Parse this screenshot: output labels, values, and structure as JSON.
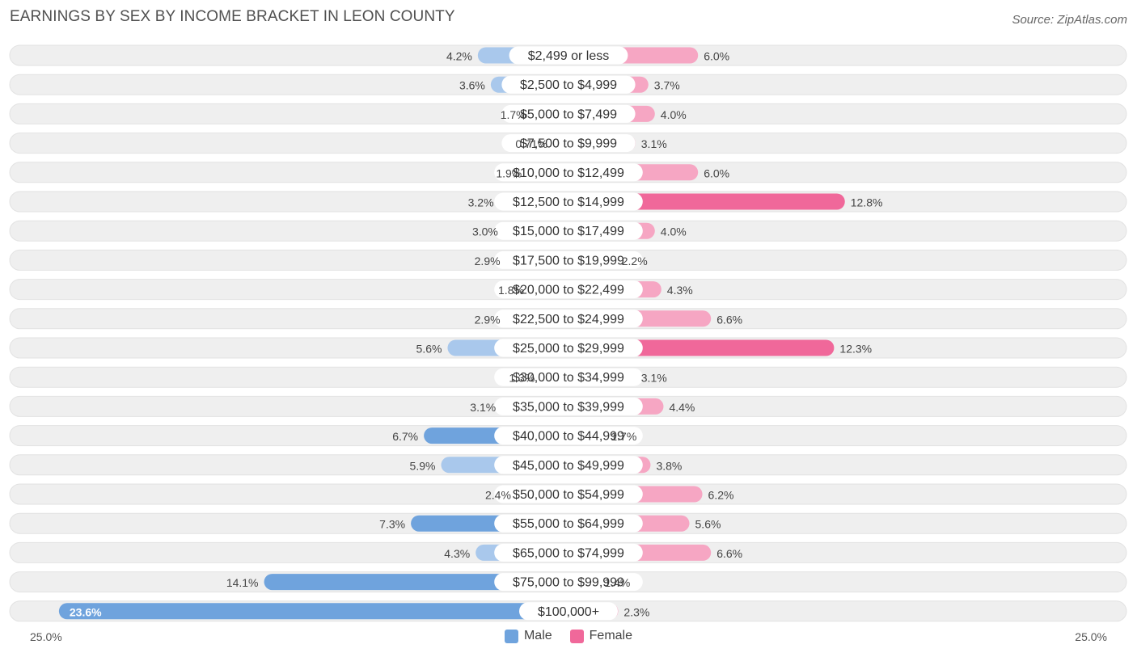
{
  "header": {
    "title": "EARNINGS BY SEX BY INCOME BRACKET IN LEON COUNTY",
    "source": "Source: ZipAtlas.com"
  },
  "colors": {
    "male": "#6fa3dd",
    "male_light": "#a9c8ec",
    "female": "#f0689a",
    "female_light": "#f6a6c3",
    "row_bg": "#efefef"
  },
  "axis": {
    "left_label": "25.0%",
    "right_label": "25.0%"
  },
  "legend": {
    "male_label": "Male",
    "female_label": "Female"
  },
  "chart_data": {
    "type": "bar",
    "orientation": "horizontal-diverging",
    "title": "EARNINGS BY SEX BY INCOME BRACKET IN LEON COUNTY",
    "xlim": [
      -25,
      25
    ],
    "categories": [
      "$2,499 or less",
      "$2,500 to $4,999",
      "$5,000 to $7,499",
      "$7,500 to $9,999",
      "$10,000 to $12,499",
      "$12,500 to $14,999",
      "$15,000 to $17,499",
      "$17,500 to $19,999",
      "$20,000 to $22,499",
      "$22,500 to $24,999",
      "$25,000 to $29,999",
      "$30,000 to $34,999",
      "$35,000 to $39,999",
      "$40,000 to $44,999",
      "$45,000 to $49,999",
      "$50,000 to $54,999",
      "$55,000 to $64,999",
      "$65,000 to $74,999",
      "$75,000 to $99,999",
      "$100,000+"
    ],
    "series": [
      {
        "name": "Male",
        "values": [
          4.2,
          3.6,
          1.7,
          0.71,
          1.9,
          3.2,
          3.0,
          2.9,
          1.8,
          2.9,
          5.6,
          1.3,
          3.1,
          6.7,
          5.9,
          2.4,
          7.3,
          4.3,
          14.1,
          23.6
        ],
        "labels": [
          "4.2%",
          "3.6%",
          "1.7%",
          "0.71%",
          "1.9%",
          "3.2%",
          "3.0%",
          "2.9%",
          "1.8%",
          "2.9%",
          "5.6%",
          "1.3%",
          "3.1%",
          "6.7%",
          "5.9%",
          "2.4%",
          "7.3%",
          "4.3%",
          "14.1%",
          "23.6%"
        ]
      },
      {
        "name": "Female",
        "values": [
          6.0,
          3.7,
          4.0,
          3.1,
          6.0,
          12.8,
          4.0,
          2.2,
          4.3,
          6.6,
          12.3,
          3.1,
          4.4,
          1.7,
          3.8,
          6.2,
          5.6,
          6.6,
          1.4,
          2.3
        ],
        "labels": [
          "6.0%",
          "3.7%",
          "4.0%",
          "3.1%",
          "6.0%",
          "12.8%",
          "4.0%",
          "2.2%",
          "4.3%",
          "6.6%",
          "12.3%",
          "3.1%",
          "4.4%",
          "1.7%",
          "3.8%",
          "6.2%",
          "5.6%",
          "6.6%",
          "1.4%",
          "2.3%"
        ]
      }
    ],
    "legend_position": "bottom-center"
  }
}
